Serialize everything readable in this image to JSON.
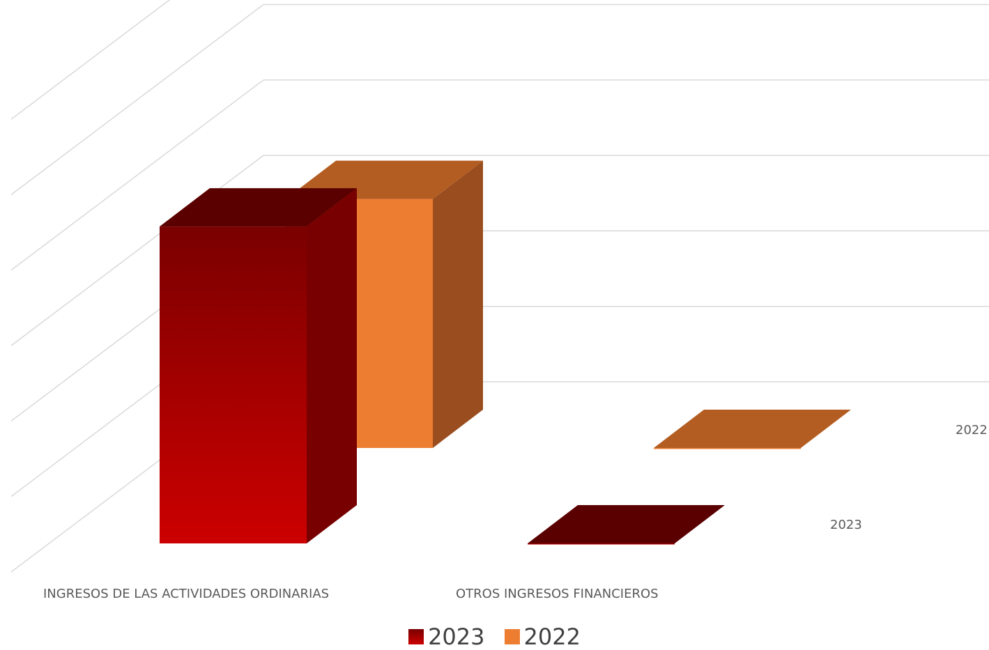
{
  "chart_data": {
    "type": "bar",
    "subtype": "3d-column",
    "categories": [
      "INGRESOS DE LAS ACTIVIDADES ORDINARIAS",
      "OTROS INGRESOS FINANCIEROS"
    ],
    "series": [
      {
        "name": "2023",
        "values": [
          4.2,
          0
        ],
        "color": "#c00000"
      },
      {
        "name": "2022",
        "values": [
          3.3,
          0
        ],
        "color": "#ed7d31"
      }
    ],
    "depth_labels": [
      "2023",
      "2022"
    ],
    "ylim": [
      0,
      7
    ],
    "grid": true,
    "legend": "bottom"
  }
}
